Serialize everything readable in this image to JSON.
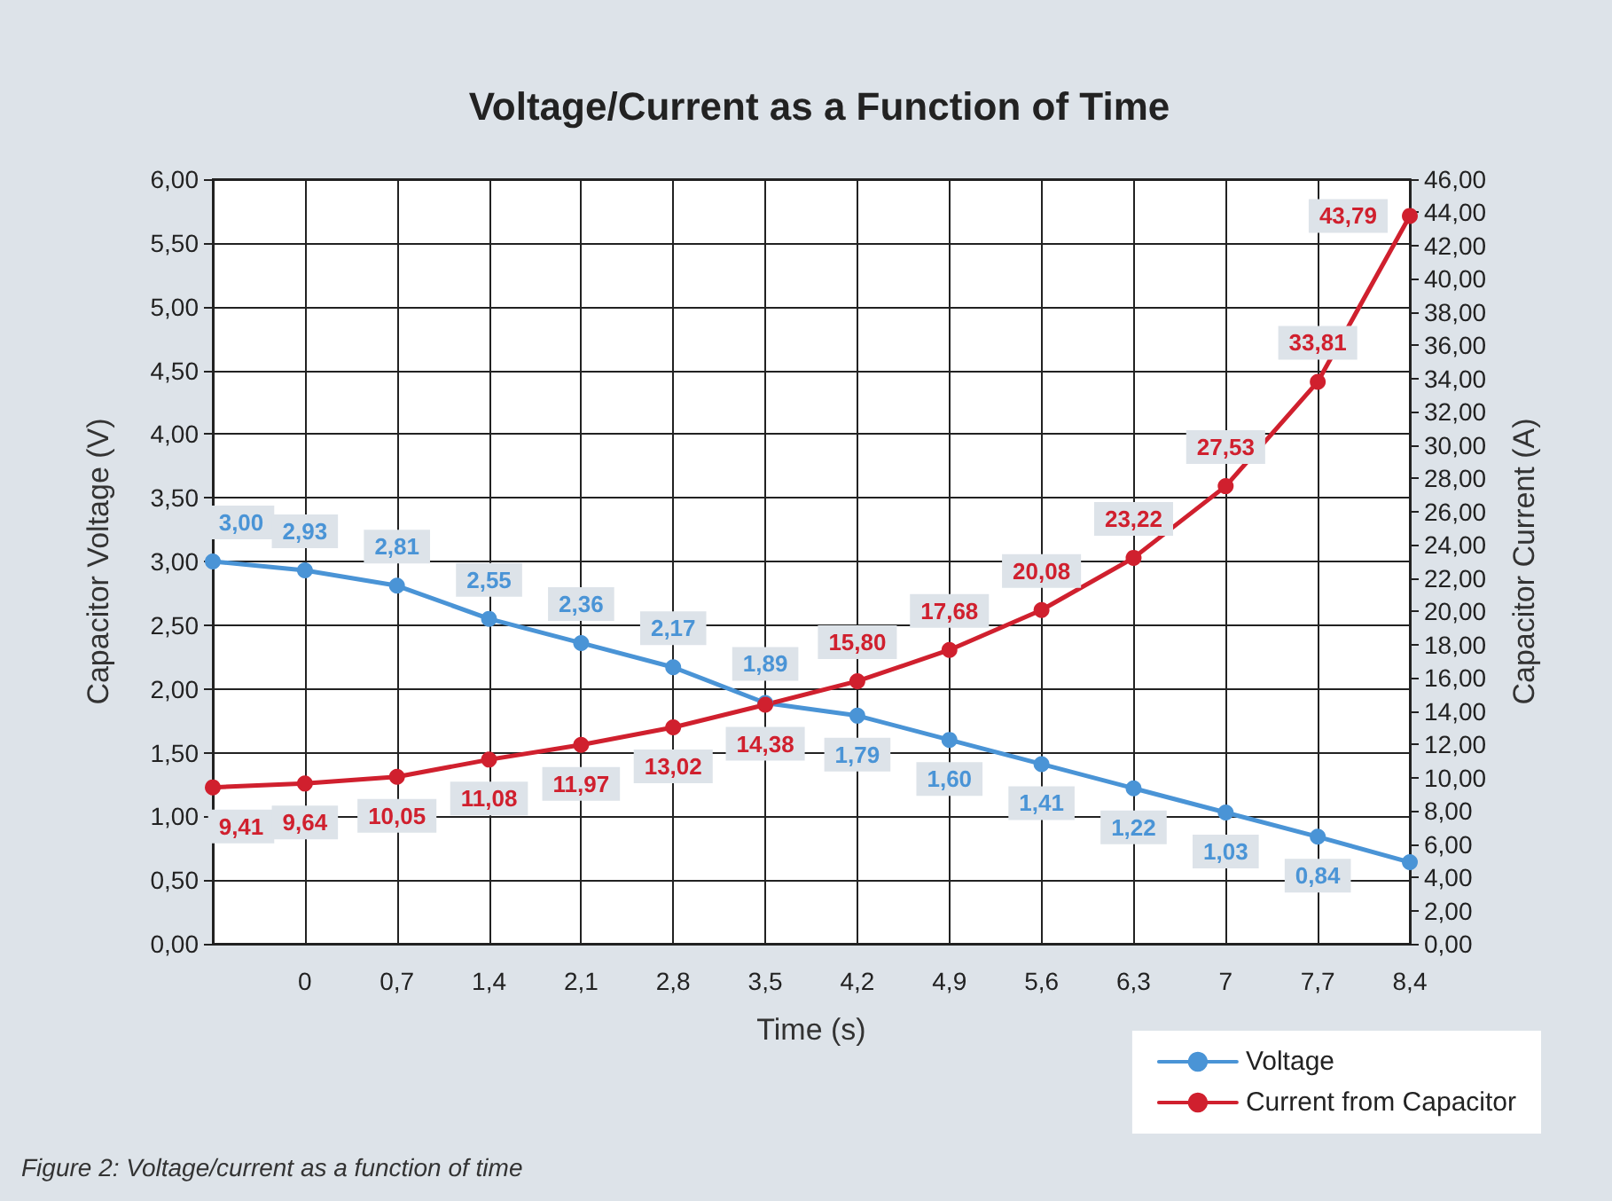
{
  "chart_data": {
    "type": "line",
    "title": "Voltage/Current as a Function of Time",
    "xlabel": "Time (s)",
    "ylabel": "Capacitor Voltage (V)",
    "y2label": "Capacitor Current (A)",
    "categories": [
      null,
      "0",
      "0,7",
      "1,4",
      "2,1",
      "2,8",
      "3,5",
      "4,2",
      "4,9",
      "5,6",
      "6,3",
      "7",
      "7,7",
      "8,4"
    ],
    "series": [
      {
        "name": "Voltage",
        "color": "#4a94d6",
        "values": [
          3.0,
          2.93,
          2.81,
          2.55,
          2.36,
          2.17,
          1.89,
          1.79,
          1.6,
          1.41,
          1.22,
          1.03,
          0.84,
          0.64
        ],
        "value_labels": [
          "3,00",
          "2,93",
          "2,81",
          "2,55",
          "2,36",
          "2,17",
          "1,89",
          "1,79",
          "1,60",
          "1,41",
          "1,22",
          "1,03",
          "0,84",
          null
        ]
      },
      {
        "name": "Current from Capacitor",
        "color": "#d0202e",
        "axis": "y2",
        "values": [
          9.41,
          9.64,
          10.05,
          11.08,
          11.97,
          13.02,
          14.38,
          15.8,
          17.68,
          20.08,
          23.22,
          27.53,
          33.81,
          43.79
        ],
        "value_labels": [
          "9,41",
          "9,64",
          "10,05",
          "11,08",
          "11,97",
          "13,02",
          "14,38",
          "15,80",
          "17,68",
          "20,08",
          "23,22",
          "27,53",
          "33,81",
          "43,79"
        ]
      }
    ],
    "ylim": [
      0,
      6
    ],
    "yticks": [
      {
        "value": 0,
        "label": "0,00"
      },
      {
        "value": 0.5,
        "label": "0,50"
      },
      {
        "value": 1,
        "label": "1,00"
      },
      {
        "value": 1.5,
        "label": "1,50"
      },
      {
        "value": 2,
        "label": "2,00"
      },
      {
        "value": 2.5,
        "label": "2,50"
      },
      {
        "value": 3,
        "label": "3,00"
      },
      {
        "value": 3.5,
        "label": "3,50"
      },
      {
        "value": 4,
        "label": "4,00"
      },
      {
        "value": 4.5,
        "label": "4,50"
      },
      {
        "value": 5,
        "label": "5,00"
      },
      {
        "value": 5.5,
        "label": "5,50"
      },
      {
        "value": 6,
        "label": "6,00"
      }
    ],
    "y2lim": [
      0,
      46
    ],
    "y2ticks": [
      {
        "value": 0,
        "label": "0,00"
      },
      {
        "value": 2,
        "label": "2,00"
      },
      {
        "value": 4,
        "label": "4,00"
      },
      {
        "value": 6,
        "label": "6,00"
      },
      {
        "value": 8,
        "label": "8,00"
      },
      {
        "value": 10,
        "label": "10,00"
      },
      {
        "value": 12,
        "label": "12,00"
      },
      {
        "value": 14,
        "label": "14,00"
      },
      {
        "value": 16,
        "label": "16,00"
      },
      {
        "value": 18,
        "label": "18,00"
      },
      {
        "value": 20,
        "label": "20,00"
      },
      {
        "value": 22,
        "label": "22,00"
      },
      {
        "value": 24,
        "label": "24,00"
      },
      {
        "value": 26,
        "label": "26,00"
      },
      {
        "value": 28,
        "label": "28,00"
      },
      {
        "value": 30,
        "label": "30,00"
      },
      {
        "value": 32,
        "label": "32,00"
      },
      {
        "value": 34,
        "label": "34,00"
      },
      {
        "value": 36,
        "label": "36,00"
      },
      {
        "value": 38,
        "label": "38,00"
      },
      {
        "value": 40,
        "label": "40,00"
      },
      {
        "value": 42,
        "label": "42,00"
      },
      {
        "value": 44,
        "label": "44,00"
      },
      {
        "value": 46,
        "label": "46,00"
      }
    ],
    "grid": true,
    "legend": "bottom right",
    "marker": "circle",
    "line_style": "solid",
    "annotations": [
      "Figure 2: Voltage/current as a function of time"
    ]
  }
}
